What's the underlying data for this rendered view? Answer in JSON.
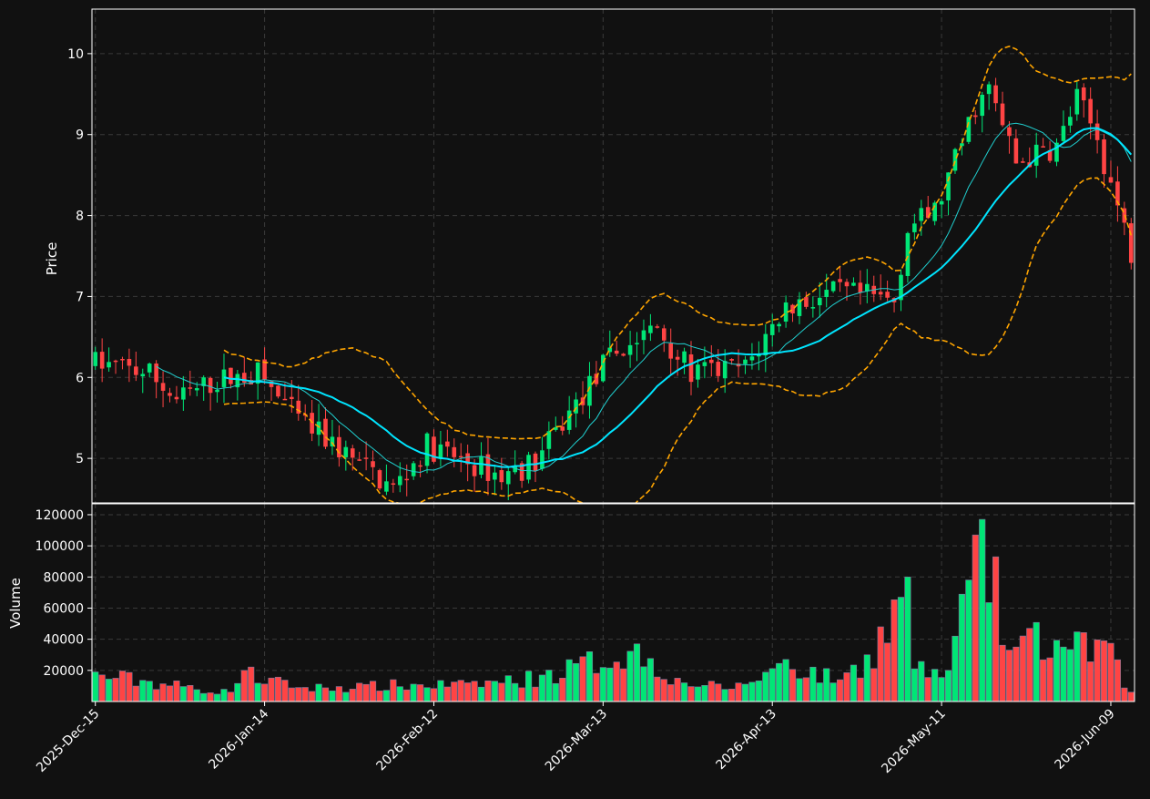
{
  "chart_data": {
    "type": "candlestick",
    "colors": {
      "background": "#111111",
      "up": "#00e676",
      "down": "#ff4444",
      "sma_fast": "#20d0d0",
      "sma_slow": "#00e5ff",
      "bollinger": "#ffa500",
      "grid": "#3a3a3a",
      "axis": "#ffffff",
      "text": "#ffffff"
    },
    "price_panel": {
      "ylabel": "Price",
      "ylim": [
        4.45,
        10.55
      ],
      "yticks": [
        5,
        6,
        7,
        8,
        9,
        10
      ],
      "grid": true
    },
    "volume_panel": {
      "ylabel": "Volume",
      "ylim": [
        0,
        127000
      ],
      "yticks": [
        20000,
        40000,
        60000,
        80000,
        100000,
        120000
      ],
      "grid": true
    },
    "x_ticks": [
      {
        "index": 0,
        "label": "2025-Dec-15"
      },
      {
        "index": 25,
        "label": "2026-Jan-14"
      },
      {
        "index": 50,
        "label": "2026-Feb-12"
      },
      {
        "index": 75,
        "label": "2026-Mar-13"
      },
      {
        "index": 100,
        "label": "2026-Apr-13"
      },
      {
        "index": 125,
        "label": "2026-May-11"
      },
      {
        "index": 150,
        "label": "2026-Jun-09"
      }
    ],
    "n_bars": 154,
    "price_anchors": [
      [
        0,
        6.18
      ],
      [
        8,
        6.05
      ],
      [
        12,
        5.72
      ],
      [
        18,
        5.96
      ],
      [
        24,
        6.05
      ],
      [
        30,
        5.48
      ],
      [
        36,
        5.12
      ],
      [
        44,
        4.62
      ],
      [
        49,
        5.15
      ],
      [
        60,
        4.78
      ],
      [
        65,
        4.95
      ],
      [
        70,
        5.55
      ],
      [
        76,
        6.25
      ],
      [
        83,
        6.62
      ],
      [
        88,
        6.05
      ],
      [
        96,
        6.12
      ],
      [
        102,
        6.88
      ],
      [
        110,
        7.05
      ],
      [
        118,
        6.95
      ],
      [
        120,
        7.85
      ],
      [
        124,
        8.05
      ],
      [
        126,
        8.45
      ],
      [
        130,
        9.35
      ],
      [
        132,
        9.55
      ],
      [
        136,
        8.65
      ],
      [
        142,
        8.85
      ],
      [
        145,
        9.45
      ],
      [
        148,
        8.95
      ],
      [
        153,
        7.55
      ]
    ],
    "volume_anchors": [
      [
        0,
        19000
      ],
      [
        20,
        6000
      ],
      [
        22,
        20000
      ],
      [
        30,
        9000
      ],
      [
        40,
        11000
      ],
      [
        55,
        12000
      ],
      [
        66,
        17000
      ],
      [
        80,
        37000
      ],
      [
        86,
        15000
      ],
      [
        94,
        8000
      ],
      [
        102,
        27000
      ],
      [
        110,
        14000
      ],
      [
        114,
        30000
      ],
      [
        119,
        67000
      ],
      [
        120,
        80000
      ],
      [
        121,
        21000
      ],
      [
        126,
        20000
      ],
      [
        127,
        42000
      ],
      [
        131,
        117000
      ],
      [
        135,
        33000
      ],
      [
        138,
        47000
      ],
      [
        143,
        35000
      ],
      [
        149,
        39000
      ],
      [
        153,
        6000
      ]
    ],
    "sma_fast_window": 10,
    "sma_slow_window": 20,
    "bollinger_window": 20,
    "bollinger_k": 2
  }
}
